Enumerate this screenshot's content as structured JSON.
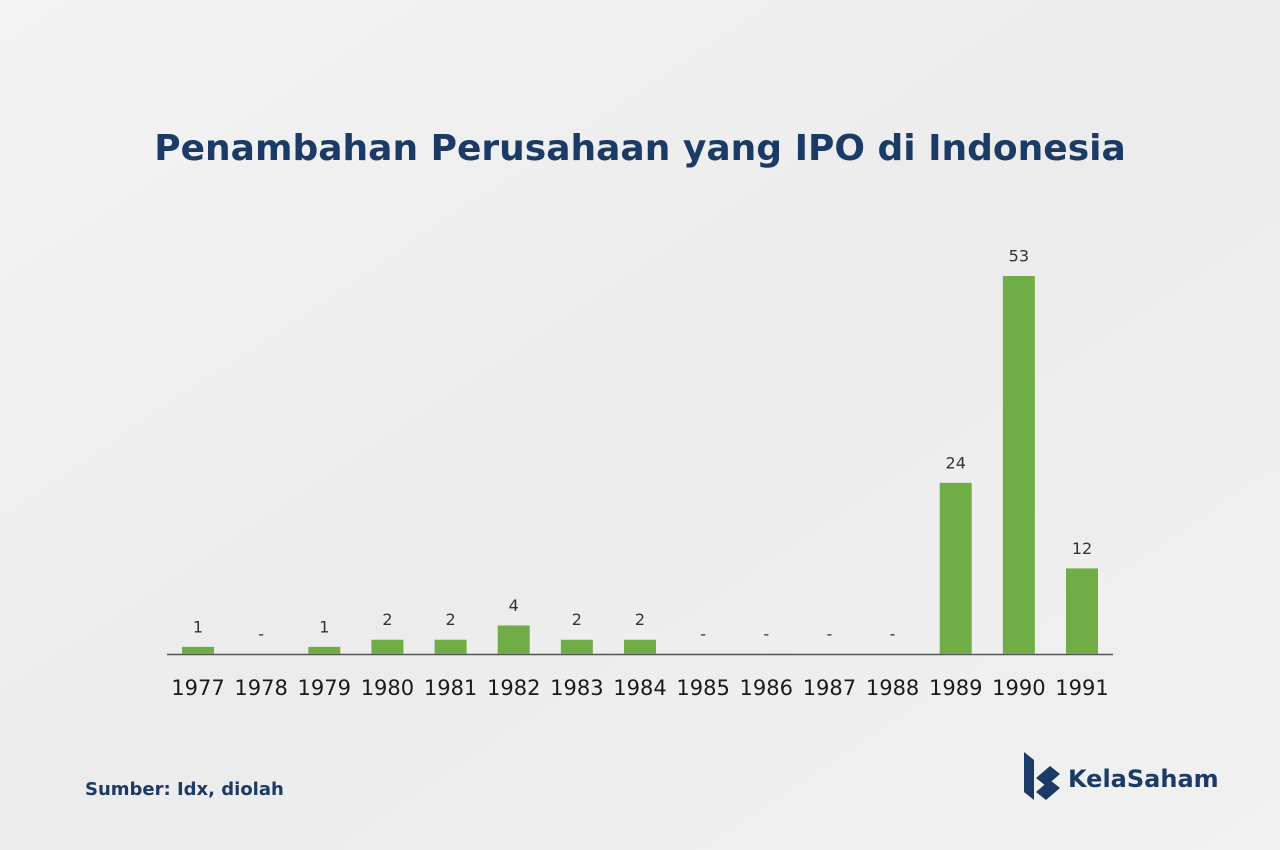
{
  "chart_data": {
    "type": "bar",
    "title": "Penambahan Perusahaan yang IPO di Indonesia",
    "categories": [
      "1977",
      "1978",
      "1979",
      "1980",
      "1981",
      "1982",
      "1983",
      "1984",
      "1985",
      "1986",
      "1987",
      "1988",
      "1989",
      "1990",
      "1991"
    ],
    "values": [
      1,
      0,
      1,
      2,
      2,
      4,
      2,
      2,
      0,
      0,
      0,
      0,
      24,
      53,
      12
    ],
    "value_labels": [
      "1",
      "-",
      "1",
      "2",
      "2",
      "4",
      "2",
      "2",
      "-",
      "-",
      "-",
      "-",
      "24",
      "53",
      "12"
    ],
    "color": "#70ad47",
    "source": "Sumber: Idx, diolah",
    "brand": "KelaSaham"
  }
}
